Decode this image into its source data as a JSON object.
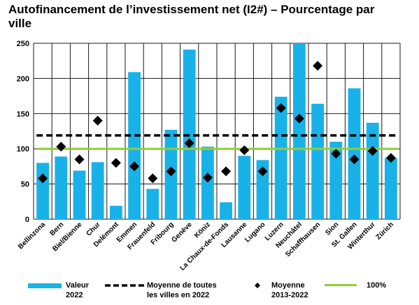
{
  "title": "Autofinancement de l’investissement net (I2#) – Pourcentage par ville",
  "chart_data": {
    "type": "bar",
    "categories": [
      "Bellinzona",
      "Bern",
      "Biel/Bienne",
      "Chur",
      "Delémont",
      "Emmen",
      "Frauenfeld",
      "Fribourg",
      "Genève",
      "Köniz",
      "La Chaux-de-Fonds",
      "Lausanne",
      "Lugano",
      "Luzern",
      "Neuchâtel",
      "Schaffhausen",
      "Sion",
      "St. Gallen",
      "Winterthur",
      "Zürich"
    ],
    "series": [
      {
        "name": "Valeur 2022",
        "type": "bar",
        "values": [
          80,
          89,
          69,
          81,
          19,
          209,
          43,
          127,
          241,
          103,
          24,
          90,
          84,
          174,
          250,
          164,
          110,
          186,
          137,
          87
        ]
      },
      {
        "name": "Moyenne 2013-2022",
        "type": "scatter",
        "values": [
          58,
          103,
          85,
          140,
          80,
          75,
          58,
          68,
          108,
          59,
          68,
          98,
          68,
          158,
          143,
          218,
          93,
          85,
          97,
          87
        ]
      },
      {
        "name": "Moyenne de toutes les villes en 2022",
        "type": "line",
        "value": 119
      },
      {
        "name": "100%",
        "type": "line",
        "value": 100
      }
    ],
    "ylim": [
      0,
      250
    ],
    "yticks": [
      0,
      50,
      100,
      150,
      200,
      250
    ],
    "grid": true,
    "legend_position": "bottom",
    "colors": {
      "bar": "#18b2e8",
      "average_line": "#000000",
      "marker": "#000000",
      "hundred_line": "#8fce3a",
      "grid": "#1a1a1a"
    }
  },
  "legend": [
    {
      "line1": "Valeur",
      "line2": "2022"
    },
    {
      "line1": "Moyenne de toutes",
      "line2": "les villes en 2022"
    },
    {
      "line1": "Moyenne",
      "line2": "2013-2022"
    },
    {
      "line1": "100%",
      "line2": ""
    }
  ]
}
